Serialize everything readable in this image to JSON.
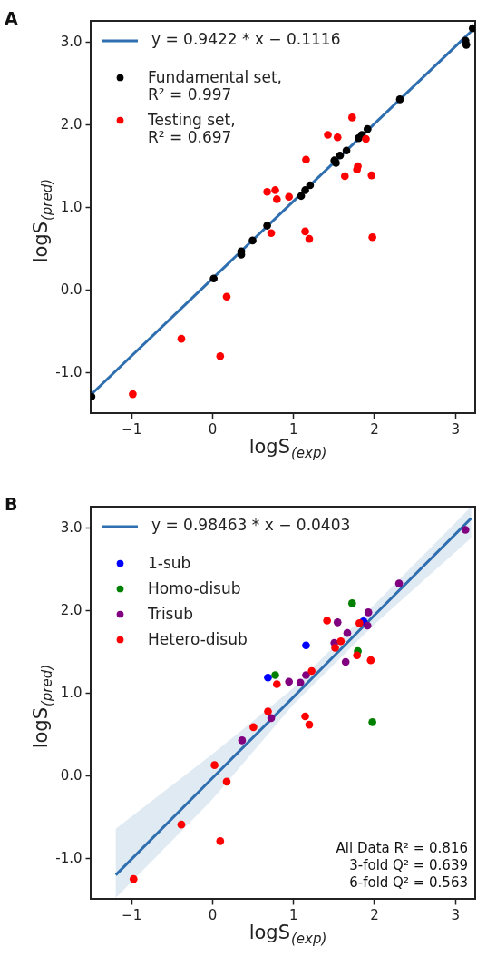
{
  "chart_data": [
    {
      "type": "scatter",
      "title": "A",
      "xlabel": "logS$_{(exp)}$",
      "ylabel": "logS$_{(pred)}$",
      "xlim": [
        -1.5,
        3.25
      ],
      "ylim": [
        -1.5,
        3.25
      ],
      "xticks": [
        -1,
        0,
        1,
        2,
        3
      ],
      "yticks": [
        {
          "value": -1,
          "label": "-1.0"
        },
        {
          "value": 0,
          "label": "0.0"
        },
        {
          "value": 1,
          "label": "1.0"
        },
        {
          "value": 2,
          "label": "2.0"
        },
        {
          "value": 3,
          "label": "3.0"
        }
      ],
      "grid": false,
      "legend": "top left",
      "marker": "circle",
      "series": [
        {
          "type": "line",
          "marker": "none",
          "name": "y = 0.9422 * x − 0.1116",
          "color": "#2f6fb0",
          "x": [
            -1.5,
            3.25
          ],
          "values": [
            -1.28,
            3.17
          ]
        },
        {
          "name": "Fundamental set, R² = 0.997",
          "color": "#000000",
          "x": [
            3.13,
            3.14,
            3.22,
            2.32,
            1.92,
            1.85,
            1.81,
            1.66,
            1.58,
            1.51,
            1.53,
            1.21,
            1.15,
            1.1,
            0.68,
            0.5,
            0.36,
            0.36,
            0.02,
            -1.49
          ],
          "values": [
            3.01,
            2.96,
            3.16,
            2.3,
            1.94,
            1.87,
            1.83,
            1.68,
            1.62,
            1.56,
            1.53,
            1.26,
            1.2,
            1.13,
            0.77,
            0.59,
            0.46,
            0.42,
            0.13,
            -1.3
          ]
        },
        {
          "name": "Testing set, R² = 0.697",
          "color": "#ff0000",
          "x": [
            1.73,
            1.43,
            1.55,
            1.9,
            1.16,
            1.8,
            1.79,
            1.64,
            1.97,
            0.68,
            0.78,
            0.8,
            0.95,
            0.73,
            1.15,
            1.2,
            1.98,
            0.18,
            -0.38,
            0.1,
            -0.98
          ],
          "values": [
            2.08,
            1.87,
            1.84,
            1.82,
            1.57,
            1.49,
            1.45,
            1.37,
            1.38,
            1.18,
            1.2,
            1.09,
            1.12,
            0.68,
            0.7,
            0.61,
            0.63,
            -0.09,
            -0.6,
            -0.81,
            -1.27
          ]
        }
      ]
    },
    {
      "type": "scatter",
      "title": "B",
      "xlabel": "logS$_{(exp)}$",
      "ylabel": "logS$_{(pred)}$",
      "xlim": [
        -1.5,
        3.25
      ],
      "ylim": [
        -1.5,
        3.25
      ],
      "xticks": [
        -1,
        0,
        1,
        2,
        3
      ],
      "yticks": [
        {
          "value": -1,
          "label": "-1.0"
        },
        {
          "value": 0,
          "label": "0.0"
        },
        {
          "value": 1,
          "label": "1.0"
        },
        {
          "value": 2,
          "label": "2.0"
        },
        {
          "value": 3,
          "label": "3.0"
        }
      ],
      "grid": false,
      "legend": "top left",
      "marker": "circle",
      "annotations": [
        "All Data R² = 0.816",
        "3-fold Q² = 0.639",
        "6-fold Q² = 0.563"
      ],
      "series": [
        {
          "type": "line",
          "marker": "none",
          "name": "y = 0.98463 * x − 0.0403",
          "color": "#2f6fb0",
          "x": [
            -1.19,
            0,
            1,
            2,
            3.2
          ],
          "values": [
            -1.21,
            -0.04,
            0.94,
            1.93,
            3.11
          ],
          "lower": [
            -1.49,
            -0.3,
            0.85,
            1.82,
            2.87
          ],
          "upper": [
            -0.65,
            0.25,
            1.05,
            2.06,
            3.25
          ]
        },
        {
          "name": "1-sub",
          "color": "#0000ff",
          "x": [
            1.16,
            0.69,
            1.87
          ],
          "values": [
            1.57,
            1.18,
            1.86
          ]
        },
        {
          "name": "Homo-disub",
          "color": "#008000",
          "x": [
            1.73,
            0.78,
            1.8,
            1.98
          ],
          "values": [
            2.08,
            1.21,
            1.5,
            0.64
          ]
        },
        {
          "name": "Trisub",
          "color": "#800080",
          "x": [
            3.13,
            2.31,
            1.93,
            1.92,
            1.55,
            1.67,
            1.51,
            1.65,
            1.16,
            1.09,
            0.95,
            0.73,
            0.37
          ],
          "values": [
            2.97,
            2.32,
            1.97,
            1.81,
            1.85,
            1.72,
            1.6,
            1.37,
            1.21,
            1.12,
            1.13,
            0.69,
            0.42
          ]
        },
        {
          "name": "Hetero-disub",
          "color": "#ff0000",
          "x": [
            1.42,
            1.82,
            1.59,
            1.52,
            1.79,
            1.96,
            1.23,
            0.8,
            0.69,
            1.15,
            1.2,
            0.51,
            0.03,
            0.18,
            -0.38,
            0.1,
            -0.97
          ],
          "values": [
            1.87,
            1.84,
            1.62,
            1.54,
            1.45,
            1.39,
            1.26,
            1.1,
            0.77,
            0.71,
            0.61,
            0.58,
            0.12,
            -0.08,
            -0.6,
            -0.8,
            -1.26
          ]
        }
      ]
    }
  ]
}
